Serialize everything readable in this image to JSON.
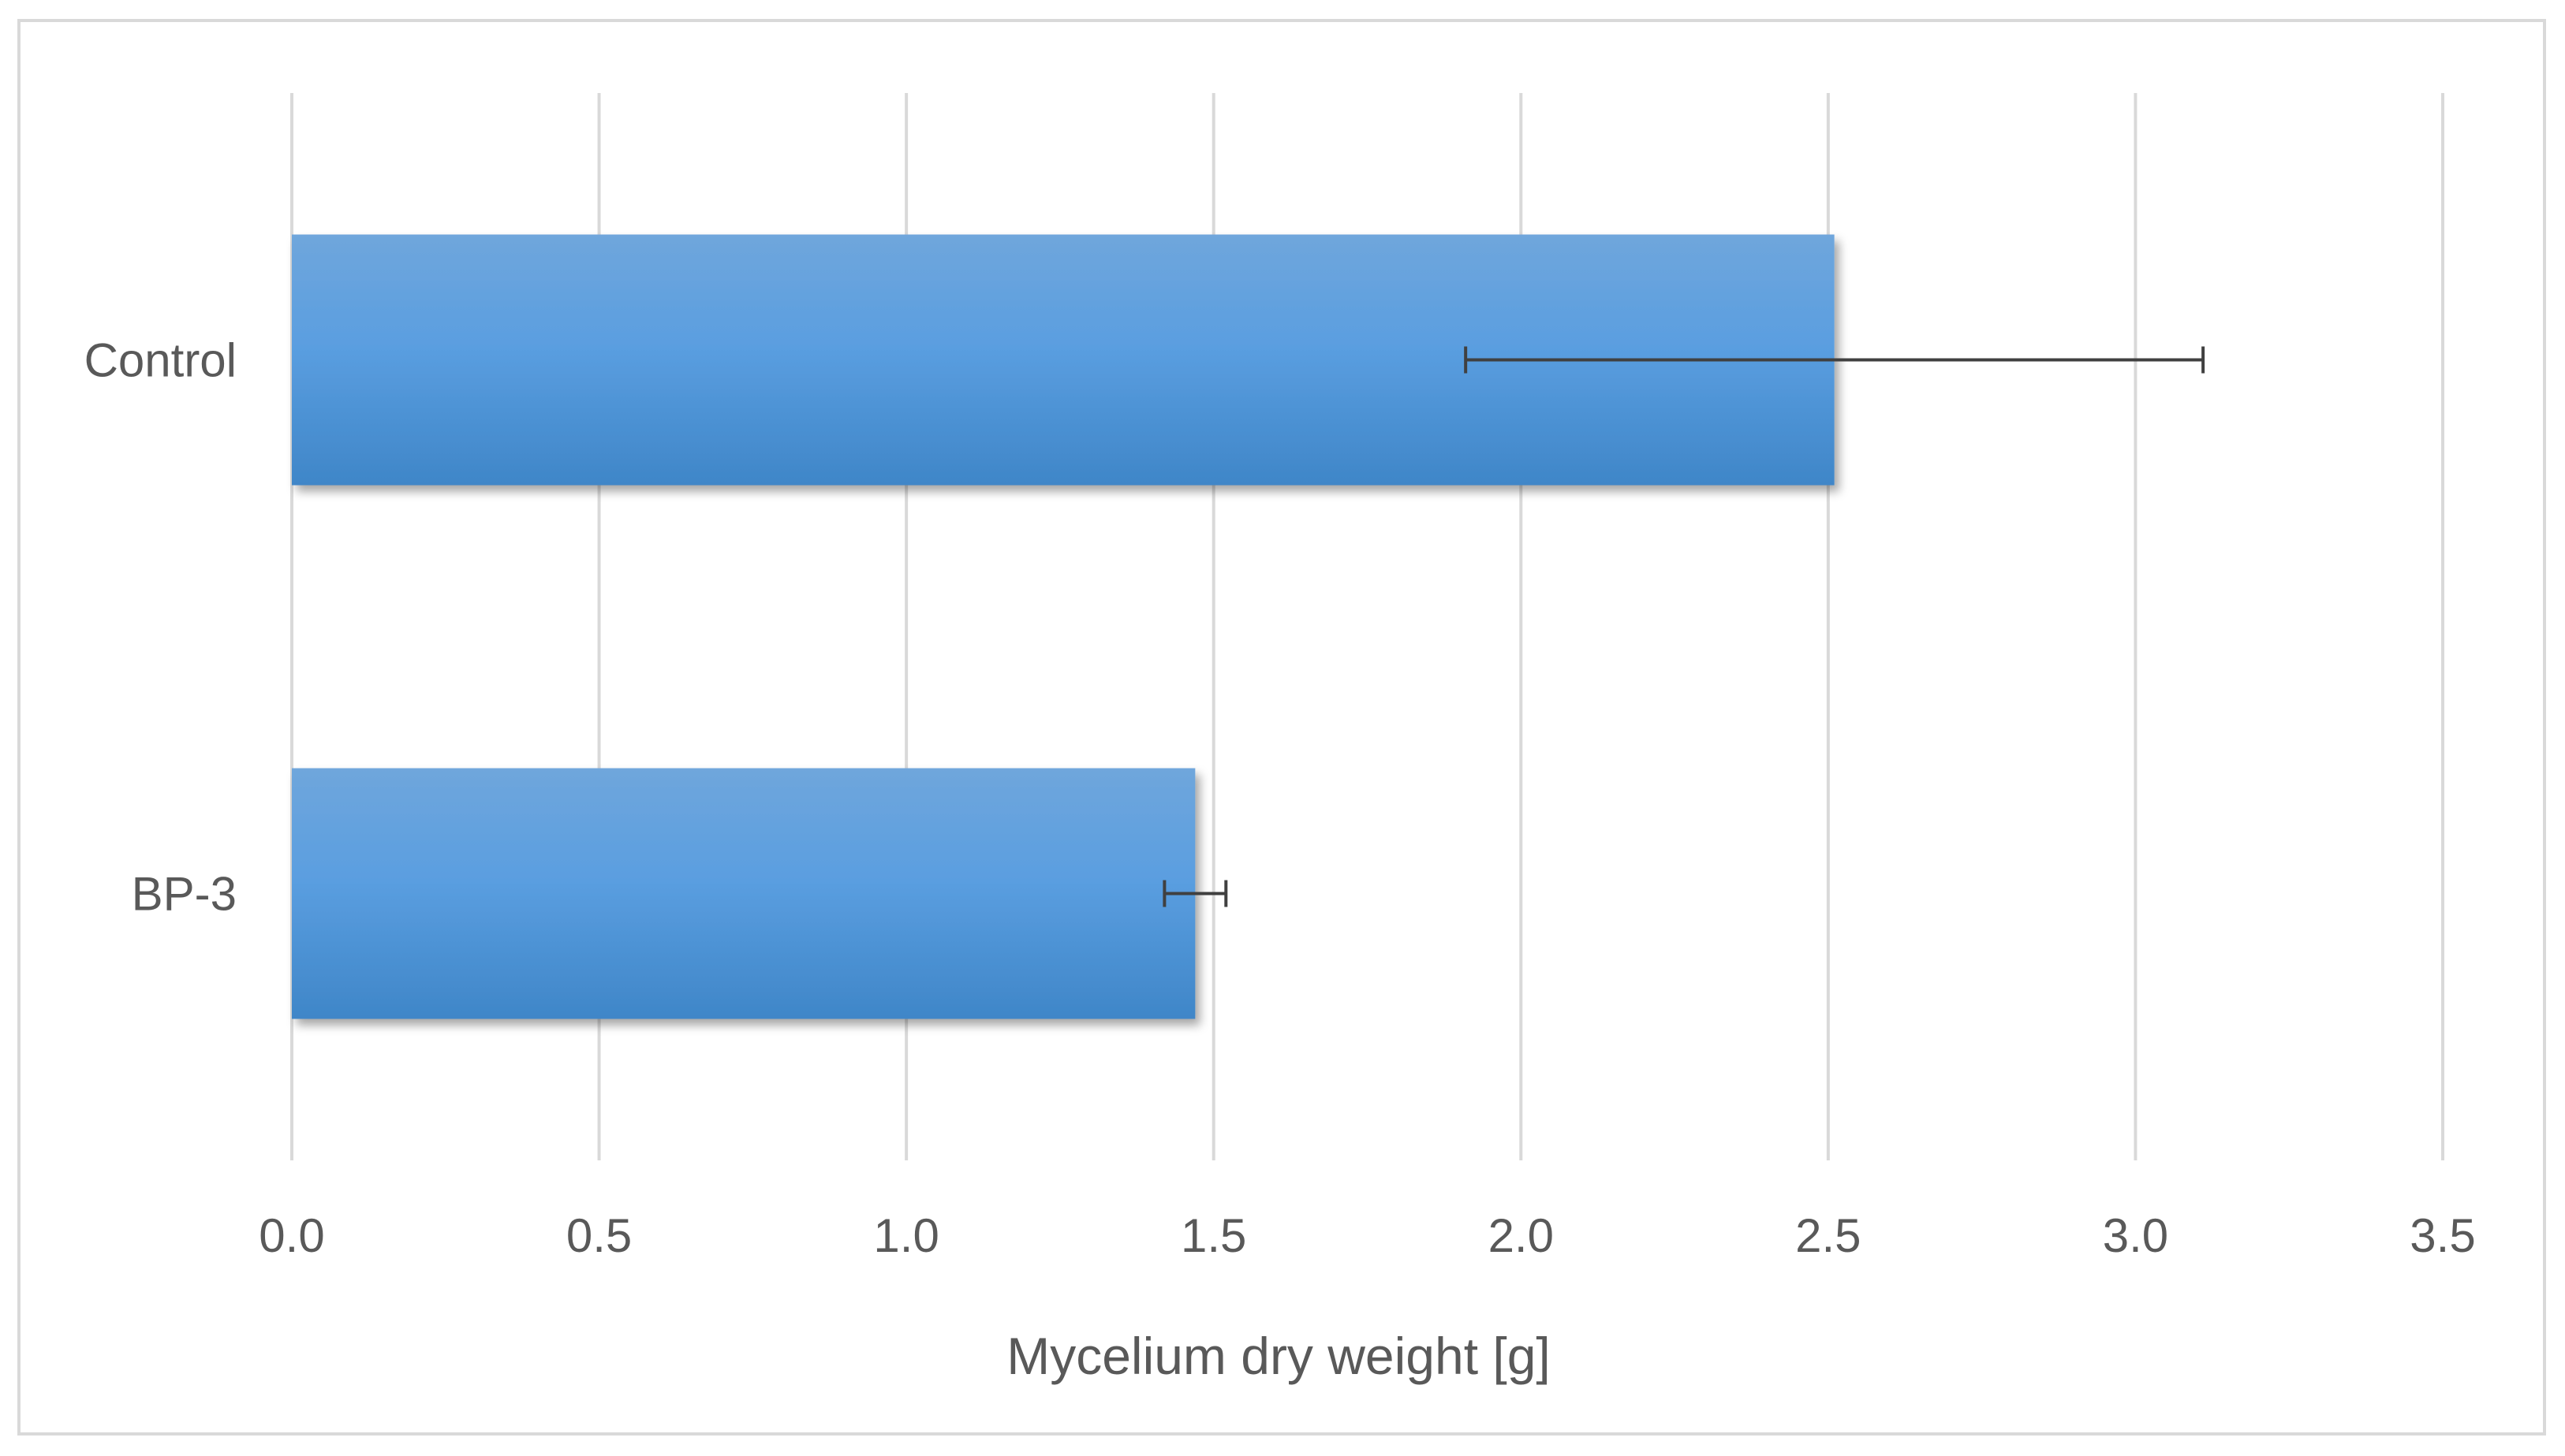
{
  "chart_data": {
    "type": "bar",
    "orientation": "horizontal",
    "categories": [
      "Control",
      "BP-3"
    ],
    "values": [
      2.51,
      1.47
    ],
    "error": [
      0.6,
      0.05
    ],
    "xlabel": "Mycelium dry weight [g]",
    "xlim": [
      0,
      3.5
    ],
    "xticks": [
      0.0,
      0.5,
      1.0,
      1.5,
      2.0,
      2.5,
      3.0,
      3.5
    ],
    "xtick_labels": [
      "0.0",
      "0.5",
      "1.0",
      "1.5",
      "2.0",
      "2.5",
      "3.0",
      "3.5"
    ],
    "grid": true,
    "legend": "none",
    "colors": {
      "bar_top": "#6fa6dc",
      "bar_mid": "#5a9ee0",
      "bar_bottom": "#3f86c8",
      "gridline": "#d9d9d9",
      "error_bar": "#404040",
      "text": "#595959"
    }
  }
}
